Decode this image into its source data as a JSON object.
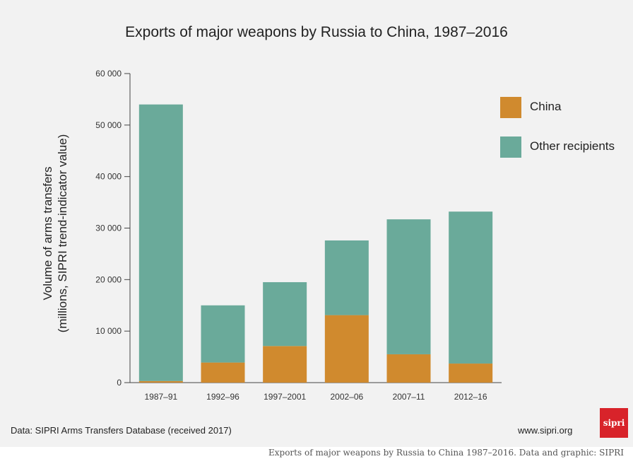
{
  "chart_data": {
    "type": "bar",
    "stacked": true,
    "title": "Exports of major weapons by Russia to China, 1987–2016",
    "ylabel_line1": "Volume of arms transfers",
    "ylabel_line2": "(millions, SIPRI trend-indicator value)",
    "xlabel": "",
    "ylim": [
      0,
      60000
    ],
    "yticks": [
      0,
      10000,
      20000,
      30000,
      40000,
      50000,
      60000
    ],
    "ytick_labels": [
      "0",
      "10 000",
      "20 000",
      "30 000",
      "40 000",
      "50 000",
      "60 000"
    ],
    "categories": [
      "1987–91",
      "1992–96",
      "1997–2001",
      "2002–06",
      "2007–11",
      "2012–16"
    ],
    "series": [
      {
        "name": "China",
        "color": "#d08a2e",
        "values": [
          300,
          3900,
          7100,
          13100,
          5500,
          3700
        ]
      },
      {
        "name": "Other recipients",
        "color": "#6aaa9a",
        "values": [
          53700,
          11100,
          12400,
          14500,
          26200,
          29500
        ]
      }
    ],
    "legend_position": "right",
    "grid": false
  },
  "footer": {
    "source": "Data: SIPRI Arms Transfers Database (received 2017)",
    "url": "www.sipri.org",
    "logo_text": "sipri",
    "caption": "Exports of major weapons by Russia to China 1987–2016. Data and graphic: SIPRI"
  }
}
